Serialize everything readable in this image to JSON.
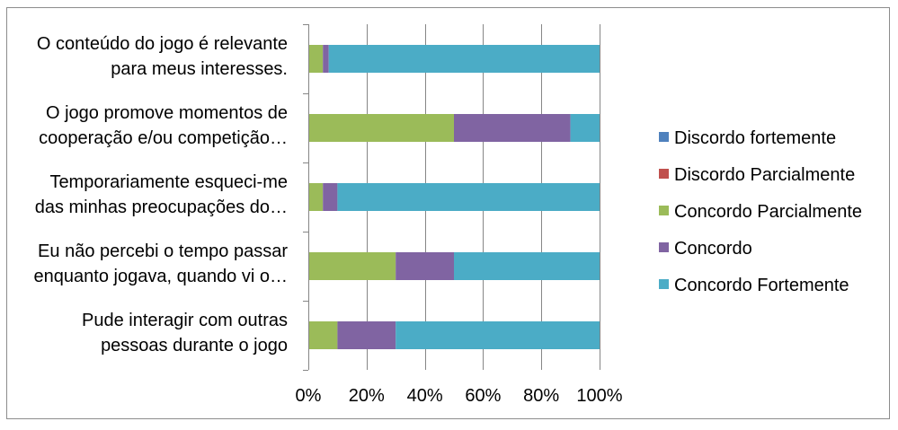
{
  "chart_data": {
    "type": "bar",
    "orientation": "horizontal",
    "stacked": "percent",
    "categories": [
      "O conteúdo do jogo é relevante para meus interesses.",
      "O jogo promove momentos de cooperação e/ou competição…",
      "Temporariamente esqueci-me das minhas preocupações do…",
      "Eu não percebi o tempo passar enquanto jogava, quando vi o…",
      "Pude interagir com outras pessoas durante o jogo"
    ],
    "category_lines": [
      [
        "O conteúdo do jogo é relevante",
        "para meus interesses."
      ],
      [
        "O jogo promove momentos de",
        "cooperação e/ou competição…"
      ],
      [
        "Temporariamente esqueci-me",
        "das minhas preocupações do…"
      ],
      [
        "Eu não percebi o tempo passar",
        "enquanto jogava, quando vi o…"
      ],
      [
        "Pude interagir com outras",
        "pessoas durante o jogo"
      ]
    ],
    "series": [
      {
        "name": "Discordo fortemente",
        "color": "#4f81bd",
        "values": [
          0,
          0,
          0,
          0,
          0
        ]
      },
      {
        "name": "Discordo Parcialmente",
        "color": "#c0504d",
        "values": [
          0,
          0,
          0,
          0,
          0
        ]
      },
      {
        "name": "Concordo Parcialmente",
        "color": "#9bbb59",
        "values": [
          5,
          50,
          5,
          30,
          10
        ]
      },
      {
        "name": "Concordo",
        "color": "#8064a2",
        "values": [
          2,
          40,
          5,
          20,
          20
        ]
      },
      {
        "name": "Concordo Fortemente",
        "color": "#4bacc6",
        "values": [
          93,
          10,
          90,
          50,
          70
        ]
      }
    ],
    "xlim": [
      0,
      100
    ],
    "x_ticks": [
      "0%",
      "20%",
      "40%",
      "60%",
      "80%",
      "100%"
    ],
    "grid": "vertical",
    "legend_position": "right"
  }
}
